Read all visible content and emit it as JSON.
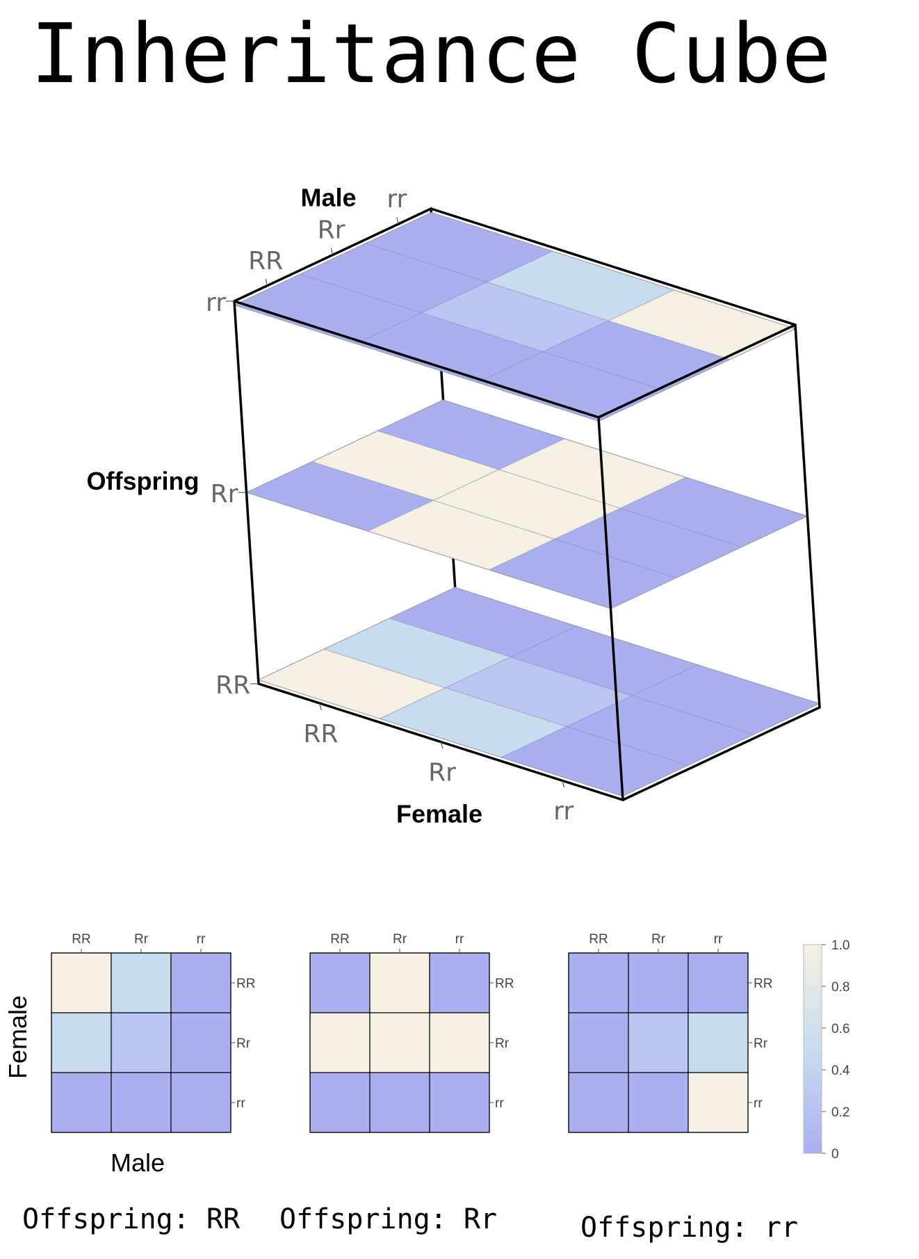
{
  "title": "Inheritance Cube",
  "colors": {
    "low": "#aaaff0",
    "mid": "#c8dcf0",
    "high": "#f5f0e1",
    "frame": "#000000",
    "tick_text": "#666666"
  },
  "chart_data": [
    {
      "type": "heatmap",
      "subtype": "3d-stacked",
      "genotypes": [
        "RR",
        "Rr",
        "rr"
      ],
      "axis_labels": {
        "female": "Female",
        "male": "Male",
        "offspring": "Offspring"
      },
      "layers": [
        {
          "offspring": "RR",
          "values": [
            [
              1.0,
              0.5,
              0.0
            ],
            [
              0.5,
              0.25,
              0.0
            ],
            [
              0.0,
              0.0,
              0.0
            ]
          ]
        },
        {
          "offspring": "Rr",
          "values": [
            [
              0.0,
              1.0,
              0.0
            ],
            [
              1.0,
              1.0,
              1.0
            ],
            [
              0.0,
              0.0,
              0.0
            ]
          ]
        },
        {
          "offspring": "rr",
          "values": [
            [
              0.0,
              0.0,
              0.0
            ],
            [
              0.0,
              0.25,
              0.5
            ],
            [
              0.0,
              0.0,
              1.0
            ]
          ]
        }
      ]
    },
    {
      "type": "heatmap",
      "caption": "Offspring: RR",
      "xlabel": "Male",
      "ylabel": "Female",
      "x_ticks": [
        "RR",
        "Rr",
        "rr"
      ],
      "y_ticks": [
        "RR",
        "Rr",
        "rr"
      ],
      "values": [
        [
          1.0,
          0.5,
          0.0
        ],
        [
          0.5,
          0.25,
          0.0
        ],
        [
          0.0,
          0.0,
          0.0
        ]
      ]
    },
    {
      "type": "heatmap",
      "caption": "Offspring: Rr",
      "x_ticks": [
        "RR",
        "Rr",
        "rr"
      ],
      "y_ticks": [
        "RR",
        "Rr",
        "rr"
      ],
      "values": [
        [
          0.0,
          1.0,
          0.0
        ],
        [
          1.0,
          1.0,
          1.0
        ],
        [
          0.0,
          0.0,
          0.0
        ]
      ]
    },
    {
      "type": "heatmap",
      "caption": "Offspring: rr",
      "x_ticks": [
        "RR",
        "Rr",
        "rr"
      ],
      "y_ticks": [
        "RR",
        "Rr",
        "rr"
      ],
      "values": [
        [
          0.0,
          0.0,
          0.0
        ],
        [
          0.0,
          0.25,
          0.5
        ],
        [
          0.0,
          0.0,
          1.0
        ]
      ],
      "colorbar": {
        "range": [
          0,
          1
        ],
        "ticks": [
          "0",
          "0.2",
          "0.4",
          "0.6",
          "0.8",
          "1.0"
        ]
      }
    }
  ]
}
